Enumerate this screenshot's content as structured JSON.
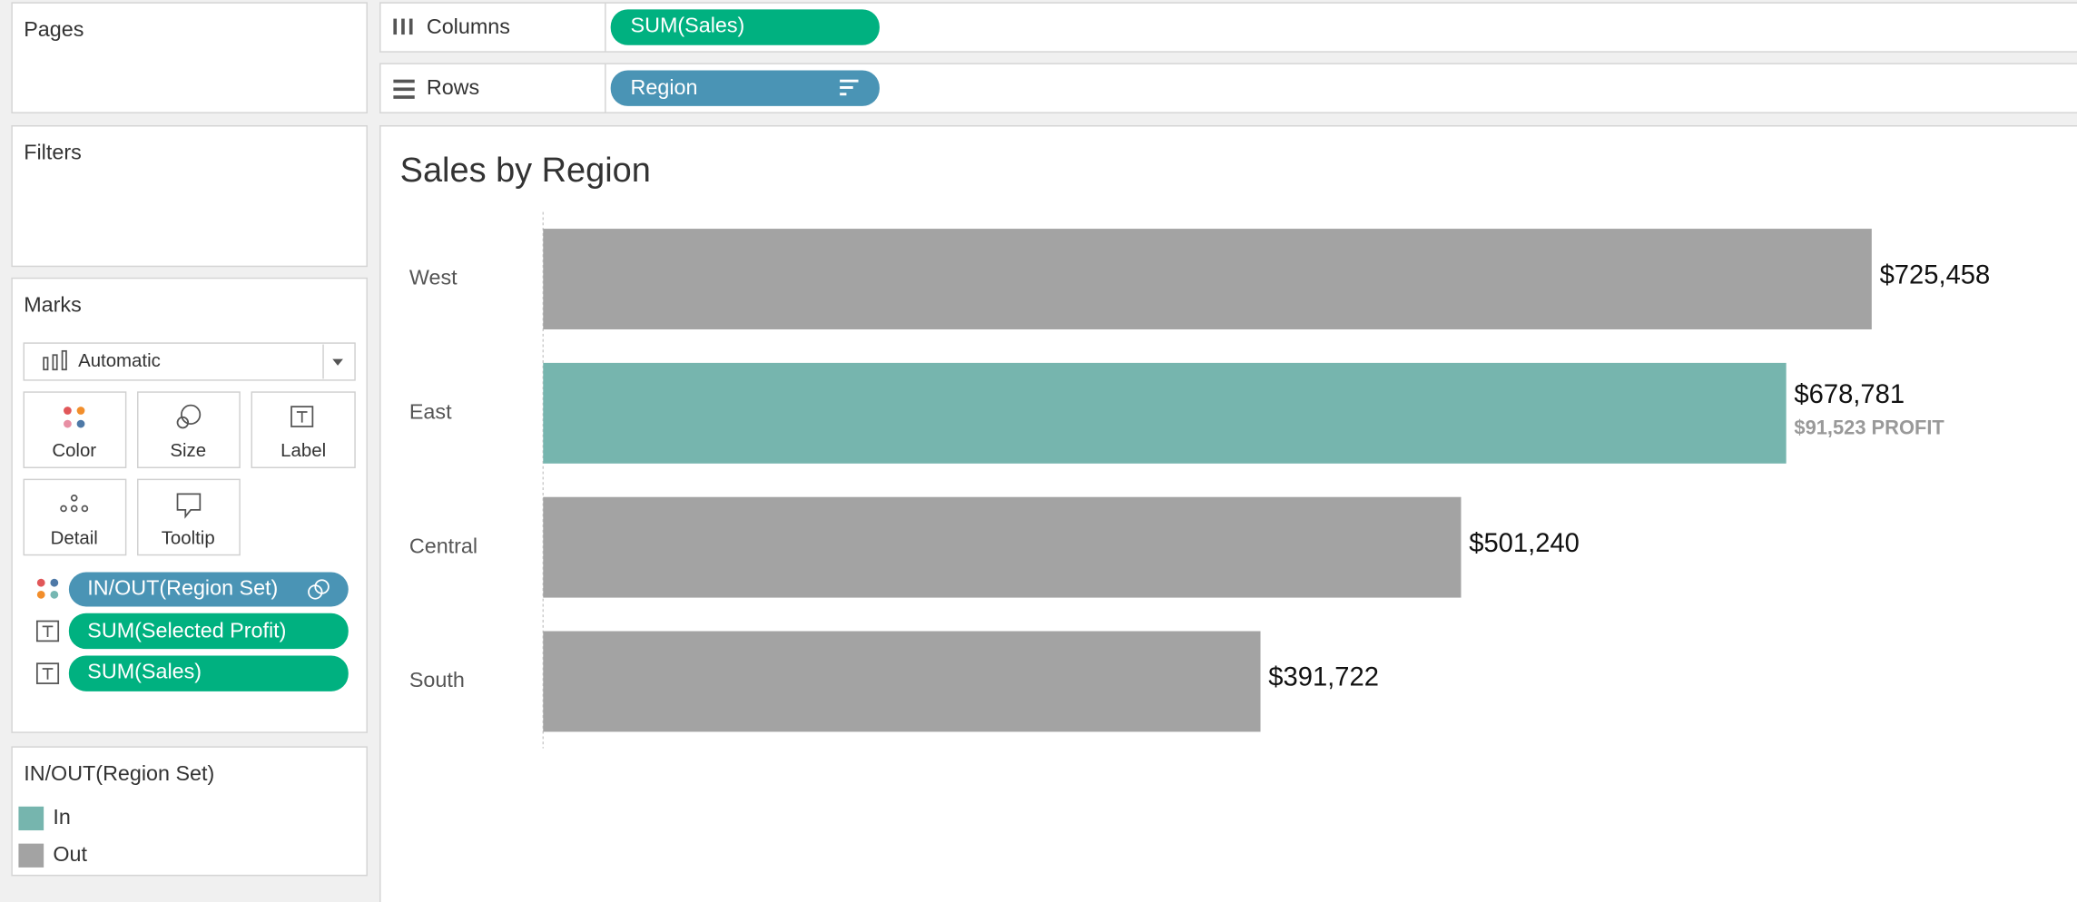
{
  "ui": {
    "pages": "Pages",
    "filters": "Filters",
    "columns": {
      "label": "Columns",
      "pill": "SUM(Sales)"
    },
    "rows": {
      "label": "Rows",
      "pill": "Region"
    },
    "marks": {
      "title": "Marks",
      "mark_type": "Automatic",
      "buttons": [
        "Color",
        "Size",
        "Label",
        "Detail",
        "Tooltip"
      ],
      "pills": [
        "IN/OUT(Region Set)",
        "SUM(Selected Profit)",
        "SUM(Sales)"
      ]
    }
  },
  "chart_data": {
    "type": "bar",
    "orientation": "horizontal",
    "title": "Sales by Region",
    "categories": [
      "West",
      "East",
      "Central",
      "South"
    ],
    "values": [
      725458,
      678781,
      501240,
      391722
    ],
    "value_labels": [
      "$725,458",
      "$678,781",
      "$501,240",
      "$391,722"
    ],
    "profit_labels": [
      null,
      "$91,523 PROFIT",
      null,
      null
    ],
    "colors": [
      "#a3a3a3",
      "#76b5ae",
      "#a3a3a3",
      "#a3a3a3"
    ],
    "legend": {
      "title": "IN/OUT(Region Set)",
      "items": [
        {
          "label": "In",
          "color": "#76b5ae"
        },
        {
          "label": "Out",
          "color": "#a3a3a3"
        }
      ]
    }
  }
}
